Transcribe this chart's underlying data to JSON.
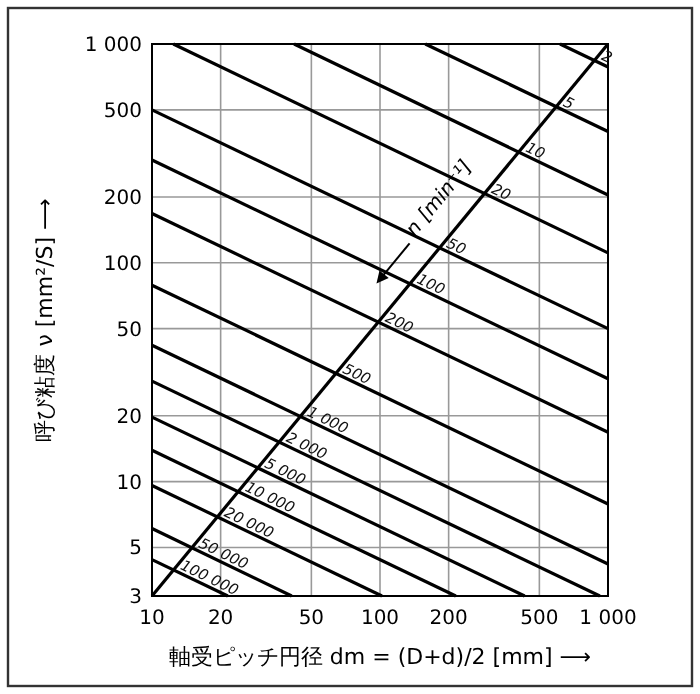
{
  "chart_data": {
    "type": "line",
    "xlabel": "軸受ピッチ円径  dm = (D+d)/2 [mm] ⟶",
    "ylabel": "呼び粘度 ν [mm²/S] ⟶",
    "log": "xy",
    "grid": true,
    "marker": "none",
    "line_style": "solid",
    "xlim": [
      10,
      1000
    ],
    "xticks": [
      10,
      20,
      50,
      100,
      200,
      500,
      {
        "value": 1000,
        "label": "1 000"
      }
    ],
    "ylim": [
      3,
      1000
    ],
    "yticks": [
      3,
      5,
      10,
      20,
      50,
      100,
      200,
      500,
      {
        "value": 1000,
        "label": "1 000"
      }
    ],
    "annotations": [
      "n [min⁻¹]"
    ],
    "series": [
      {
        "name": "2",
        "color": "#000000",
        "x": [
          616,
          1000
        ],
        "values": [
          1000,
          785
        ]
      },
      {
        "name": "5",
        "color": "#000000",
        "x": [
          158,
          1000
        ],
        "values": [
          1000,
          398
        ]
      },
      {
        "name": "10",
        "color": "#000000",
        "x": [
          42,
          1000
        ],
        "values": [
          1000,
          204
        ]
      },
      {
        "name": "20",
        "color": "#000000",
        "x": [
          12.4,
          1000
        ],
        "values": [
          1000,
          111
        ]
      },
      {
        "name": "50",
        "color": "#000000",
        "x": [
          10,
          1000
        ],
        "values": [
          500,
          50
        ]
      },
      {
        "name": "100",
        "color": "#000000",
        "x": [
          10,
          1000
        ],
        "values": [
          295,
          29.5
        ]
      },
      {
        "name": "200",
        "color": "#000000",
        "x": [
          10,
          1000
        ],
        "values": [
          168,
          16.8
        ]
      },
      {
        "name": "500",
        "color": "#000000",
        "x": [
          10,
          1000
        ],
        "values": [
          79,
          7.9
        ]
      },
      {
        "name": "1 000",
        "color": "#000000",
        "x": [
          10,
          1000
        ],
        "values": [
          42,
          4.2
        ]
      },
      {
        "name": "2 000",
        "color": "#000000",
        "x": [
          10,
          921
        ],
        "values": [
          28.8,
          3
        ]
      },
      {
        "name": "5 000",
        "color": "#000000",
        "x": [
          10,
          431
        ],
        "values": [
          19.7,
          3
        ]
      },
      {
        "name": "10 000",
        "color": "#000000",
        "x": [
          10,
          215
        ],
        "values": [
          13.9,
          3
        ]
      },
      {
        "name": "20 000",
        "color": "#000000",
        "x": [
          10,
          102
        ],
        "values": [
          9.6,
          3
        ]
      },
      {
        "name": "50 000",
        "color": "#000000",
        "x": [
          10,
          41
        ],
        "values": [
          6.1,
          3
        ]
      },
      {
        "name": "100 000",
        "color": "#000000",
        "x": [
          10,
          21.5
        ],
        "values": [
          4.4,
          3
        ]
      },
      {
        "color": "#000000",
        "x": [
          10,
          1000
        ],
        "values": [
          3,
          1000
        ]
      }
    ]
  }
}
